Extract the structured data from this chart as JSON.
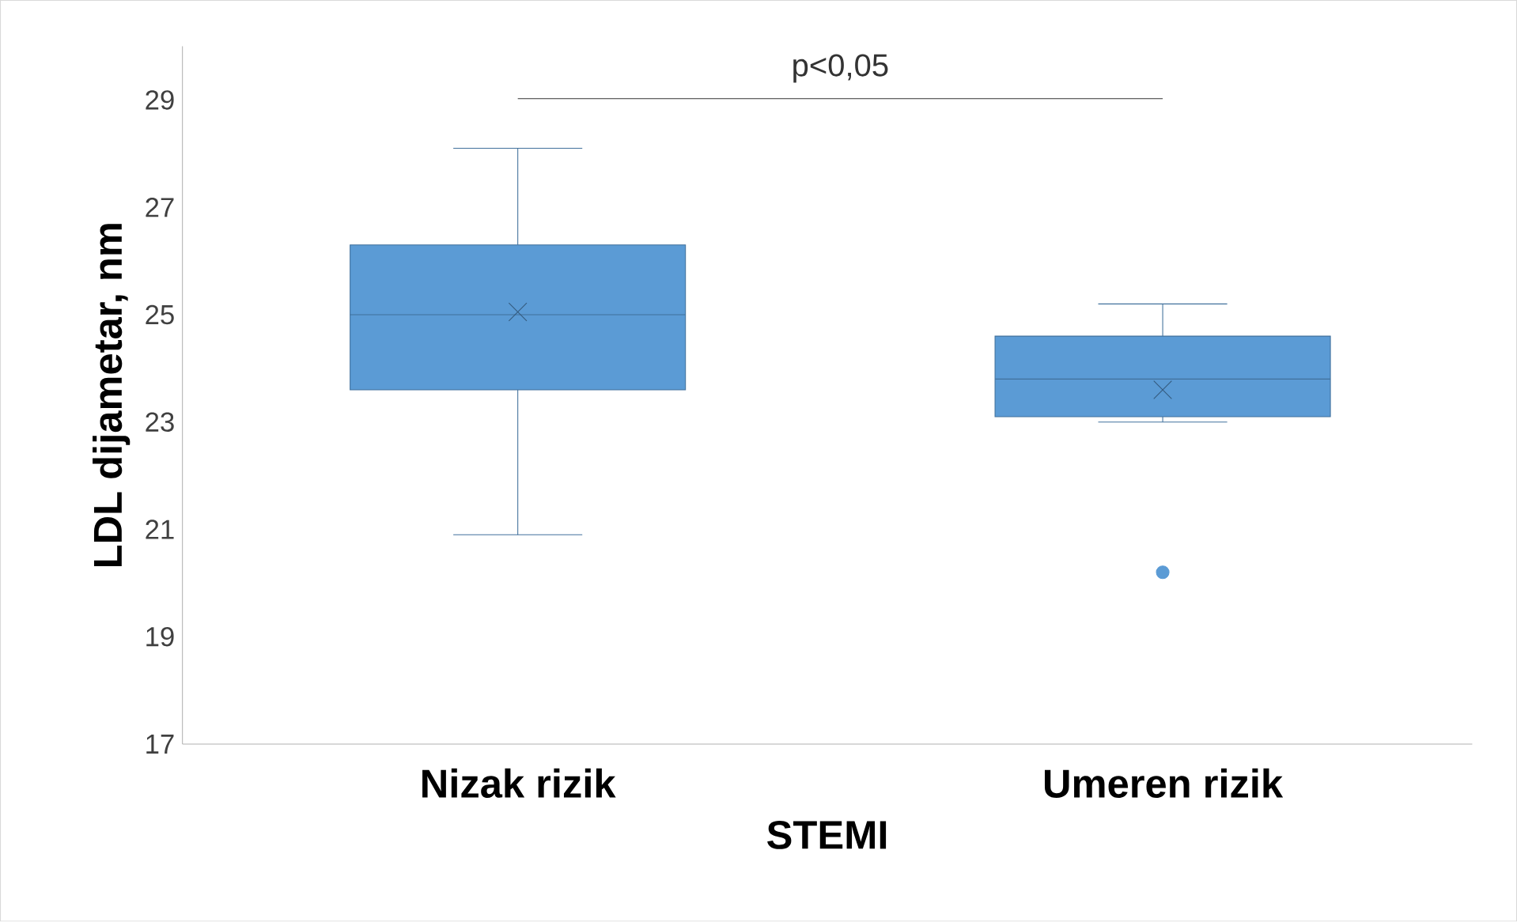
{
  "chart_data": {
    "type": "box",
    "xlabel": "STEMI",
    "ylabel": "LDL dijametar, nm",
    "categories": [
      "Nizak rizik",
      "Umeren rizik"
    ],
    "boxes": [
      {
        "low": 20.9,
        "q1": 23.6,
        "median": 25.0,
        "q3": 26.3,
        "high": 28.1,
        "mean": 25.05
      },
      {
        "low": 23.0,
        "q1": 23.1,
        "median": 23.8,
        "q3": 24.6,
        "high": 25.2,
        "mean": 23.6,
        "outliers": [
          20.2
        ]
      }
    ],
    "color": "#5b9bd5",
    "ylim": [
      17,
      30
    ],
    "yticks": [
      17,
      19,
      21,
      23,
      25,
      27,
      29
    ],
    "grid": false,
    "marker": "cross",
    "annotations": [
      "p<0,05"
    ]
  }
}
